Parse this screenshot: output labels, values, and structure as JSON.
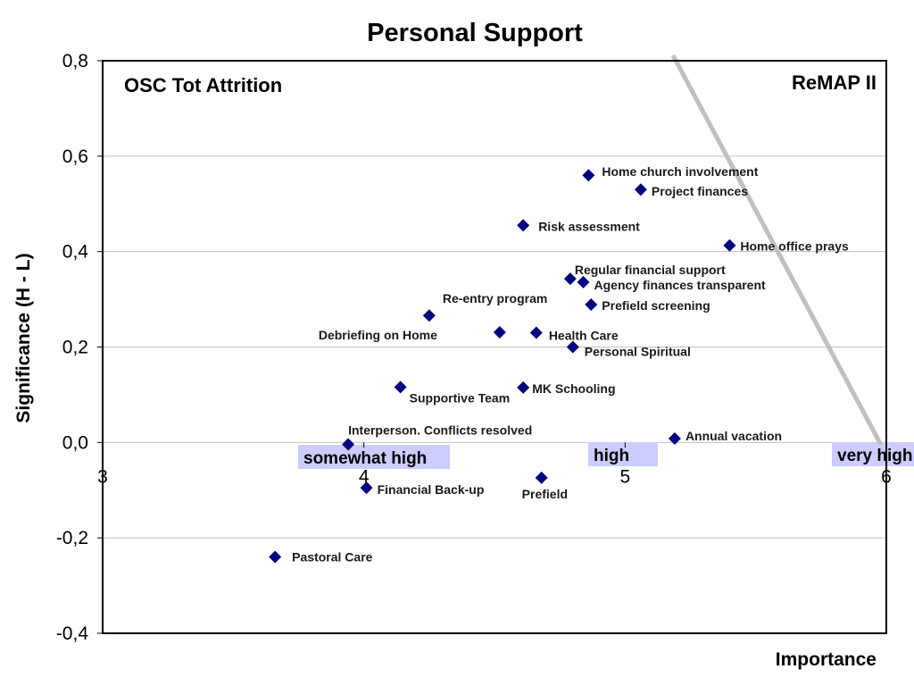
{
  "chart_data": {
    "type": "scatter",
    "title": "Personal Support",
    "xlabel": "Importance",
    "ylabel": "Significance (H - L)",
    "xlim": [
      3,
      6
    ],
    "ylim": [
      -0.4,
      0.8
    ],
    "x_ticks": [
      "3",
      "4",
      "5",
      "6"
    ],
    "y_ticks": [
      "-0,4",
      "-0,2",
      "0,0",
      "0,2",
      "0,4",
      "0,6",
      "0,8"
    ],
    "grid": "horizontal",
    "corner_labels": {
      "left": "OSC Tot Attrition",
      "right": "ReMAP II"
    },
    "points": [
      {
        "label": "Home church involvement",
        "x": 4.86,
        "y": 0.56
      },
      {
        "label": "Project finances",
        "x": 5.06,
        "y": 0.53
      },
      {
        "label": "Risk assessment",
        "x": 4.61,
        "y": 0.455
      },
      {
        "label": "Home office prays",
        "x": 5.4,
        "y": 0.413
      },
      {
        "label": "Regular financial support",
        "x": 4.79,
        "y": 0.343
      },
      {
        "label": "Agency finances transparent",
        "x": 4.84,
        "y": 0.336
      },
      {
        "label": "Prefield screening",
        "x": 4.87,
        "y": 0.289
      },
      {
        "label": "Re-entry program",
        "x": 4.25,
        "y": 0.266
      },
      {
        "label": "Debriefing on Home",
        "x": 4.52,
        "y": 0.231
      },
      {
        "label": "Health Care",
        "x": 4.66,
        "y": 0.23
      },
      {
        "label": "Personal Spiritual",
        "x": 4.8,
        "y": 0.2
      },
      {
        "label": "Supportive Team",
        "x": 4.14,
        "y": 0.116
      },
      {
        "label": "MK Schooling",
        "x": 4.61,
        "y": 0.115
      },
      {
        "label": "Interperson. Conflicts resolved",
        "x": 3.94,
        "y": -0.004
      },
      {
        "label": "Annual vacation",
        "x": 5.19,
        "y": 0.008
      },
      {
        "label": "Financial Back-up",
        "x": 4.01,
        "y": -0.095
      },
      {
        "label": "Prefield",
        "x": 4.68,
        "y": -0.074
      },
      {
        "label": "Pastoral Care",
        "x": 3.66,
        "y": -0.24
      }
    ],
    "bands": [
      "somewhat high",
      "high",
      "very high"
    ],
    "colors": {
      "marker": "#000080",
      "band": "#ccccff",
      "divider": "#c0c0c0",
      "grid": "#c0c0c0"
    }
  }
}
